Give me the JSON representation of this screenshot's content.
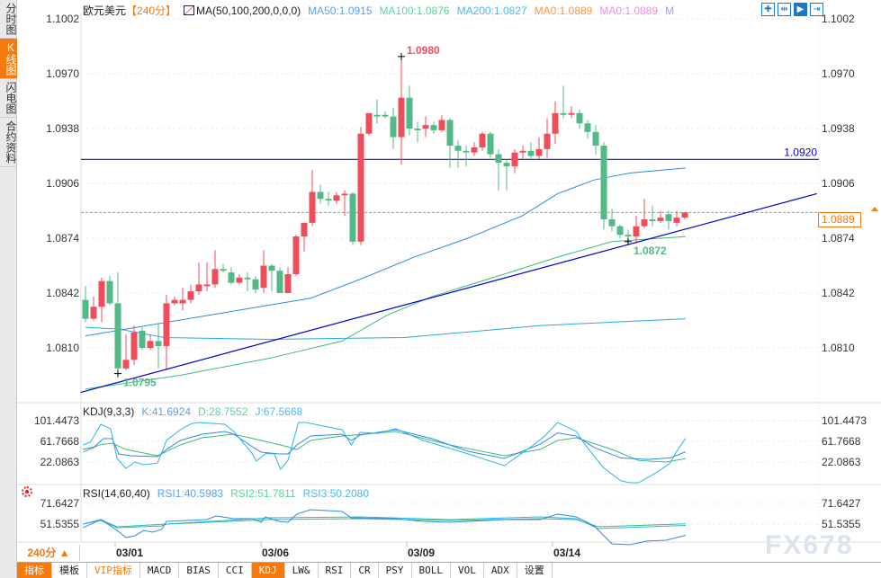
{
  "sidebar": {
    "tabs": [
      {
        "label": "分时图",
        "active": false
      },
      {
        "label": "K线图",
        "active": true
      },
      {
        "label": "闪电图",
        "active": false
      },
      {
        "label": "合约资料",
        "active": false
      }
    ]
  },
  "header": {
    "symbol": "欧元美元",
    "period": "【240分】",
    "ma_setting": "MA(50,100,200,0,0,0)",
    "ma50": "MA50:1.0915",
    "ma100": "MA100:1.0876",
    "ma200": "MA200:1.0827",
    "ma0a": "MA0:1.0889",
    "ma0b": "MA0:1.0889",
    "more": "M"
  },
  "tools": [
    {
      "icon": "crosshair-icon"
    },
    {
      "icon": "fit-range-icon"
    },
    {
      "icon": "play-icon"
    },
    {
      "icon": "exit-right-icon"
    }
  ],
  "colors": {
    "up": "#ee4d5a",
    "down": "#52b987",
    "ma50": "#2f8ae5",
    "ma100": "#3dbb78",
    "ma200": "#29a9e0",
    "trendline": "#0000cc",
    "hline": "#1a1a7a",
    "accent": "#f47a10",
    "k": "#2f8ae5",
    "d": "#3dbb78",
    "j": "#29b6e8"
  },
  "chart_data": {
    "type": "candlestick",
    "y_ticks": [
      "1.1002",
      "1.0970",
      "1.0938",
      "1.0906",
      "1.0874",
      "1.0842",
      "1.0810"
    ],
    "ylim": [
      1.0784,
      1.1002
    ],
    "x_ticks": [
      {
        "label": "03/01",
        "index": 4
      },
      {
        "label": "03/06",
        "index": 22
      },
      {
        "label": "03/09",
        "index": 40
      },
      {
        "label": "03/14",
        "index": 58
      }
    ],
    "ohlc": [
      [
        1.0838,
        1.0846,
        1.0825,
        1.0827
      ],
      [
        1.0827,
        1.084,
        1.0826,
        1.0834
      ],
      [
        1.0834,
        1.0851,
        1.0825,
        1.0849
      ],
      [
        1.0849,
        1.0852,
        1.0835,
        1.0836
      ],
      [
        1.0836,
        1.0854,
        1.0796,
        1.0798
      ],
      [
        1.0798,
        1.0818,
        1.0797,
        1.0803
      ],
      [
        1.0803,
        1.0823,
        1.08,
        1.0819
      ],
      [
        1.082,
        1.0822,
        1.0809,
        1.081
      ],
      [
        1.081,
        1.0818,
        1.0809,
        1.0814
      ],
      [
        1.0814,
        1.0824,
        1.0798,
        1.0811
      ],
      [
        1.0811,
        1.0841,
        1.0797,
        1.0836
      ],
      [
        1.0836,
        1.084,
        1.0835,
        1.0838
      ],
      [
        1.0836,
        1.0845,
        1.0832,
        1.0838
      ],
      [
        1.0838,
        1.0847,
        1.0836,
        1.0843
      ],
      [
        1.0843,
        1.086,
        1.0841,
        1.0847
      ],
      [
        1.0846,
        1.086,
        1.0843,
        1.0847
      ],
      [
        1.0847,
        1.0867,
        1.0845,
        1.0856
      ],
      [
        1.0856,
        1.0859,
        1.0854,
        1.0855
      ],
      [
        1.0854,
        1.0857,
        1.0847,
        1.0848
      ],
      [
        1.0848,
        1.0853,
        1.0847,
        1.0851
      ],
      [
        1.0851,
        1.0854,
        1.0843,
        1.085
      ],
      [
        1.085,
        1.0852,
        1.0842,
        1.0844
      ],
      [
        1.0845,
        1.0867,
        1.0842,
        1.0858
      ],
      [
        1.0858,
        1.0859,
        1.0843,
        1.0855
      ],
      [
        1.0855,
        1.0857,
        1.0842,
        1.0842
      ],
      [
        1.0842,
        1.0857,
        1.0842,
        1.0853
      ],
      [
        1.0853,
        1.0876,
        1.0852,
        1.0875
      ],
      [
        1.0875,
        1.0883,
        1.0866,
        1.0883
      ],
      [
        1.0883,
        1.0914,
        1.0881,
        1.0901
      ],
      [
        1.0901,
        1.0905,
        1.0894,
        1.0897
      ],
      [
        1.0897,
        1.0901,
        1.0893,
        1.0896
      ],
      [
        1.0896,
        1.0901,
        1.0894,
        1.0899
      ],
      [
        1.0899,
        1.0902,
        1.0887,
        1.09
      ],
      [
        1.09,
        1.0901,
        1.087,
        1.0872
      ],
      [
        1.0872,
        1.0939,
        1.087,
        1.0935
      ],
      [
        1.0935,
        1.0947,
        1.0934,
        1.0947
      ],
      [
        1.0946,
        1.0955,
        1.0941,
        1.0945
      ],
      [
        1.0946,
        1.0948,
        1.0944,
        1.0945
      ],
      [
        1.0945,
        1.095,
        1.0926,
        1.0933
      ],
      [
        1.0933,
        1.098,
        1.0917,
        1.0956
      ],
      [
        1.0956,
        1.0963,
        1.0934,
        1.0938
      ],
      [
        1.0938,
        1.0942,
        1.093,
        1.0937
      ],
      [
        1.0938,
        1.0945,
        1.0933,
        1.094
      ],
      [
        1.094,
        1.0942,
        1.0935,
        1.0937
      ],
      [
        1.0937,
        1.0946,
        1.0936,
        1.0943
      ],
      [
        1.0943,
        1.0944,
        1.0915,
        1.0928
      ],
      [
        1.0928,
        1.0931,
        1.0915,
        1.0925
      ],
      [
        1.0925,
        1.0928,
        1.0916,
        1.0924
      ],
      [
        1.0924,
        1.093,
        1.0922,
        1.0927
      ],
      [
        1.0927,
        1.0936,
        1.0925,
        1.0935
      ],
      [
        1.0935,
        1.0936,
        1.0921,
        1.0923
      ],
      [
        1.0923,
        1.0926,
        1.0902,
        1.0918
      ],
      [
        1.0918,
        1.092,
        1.0902,
        1.0916
      ],
      [
        1.0916,
        1.0926,
        1.0912,
        1.0924
      ],
      [
        1.0924,
        1.0928,
        1.092,
        1.0925
      ],
      [
        1.0925,
        1.093,
        1.092,
        1.0922
      ],
      [
        1.0922,
        1.0933,
        1.092,
        1.0926
      ],
      [
        1.0926,
        1.0944,
        1.0921,
        1.0935
      ],
      [
        1.0935,
        1.0954,
        1.0929,
        1.0947
      ],
      [
        1.0947,
        1.0963,
        1.0944,
        1.0946
      ],
      [
        1.0946,
        1.0951,
        1.0944,
        1.0947
      ],
      [
        1.0947,
        1.0949,
        1.0938,
        1.0941
      ],
      [
        1.0941,
        1.0943,
        1.0932,
        1.0936
      ],
      [
        1.0936,
        1.094,
        1.0923,
        1.0928
      ],
      [
        1.0928,
        1.093,
        1.0879,
        1.0885
      ],
      [
        1.0885,
        1.0891,
        1.0878,
        1.0881
      ],
      [
        1.0881,
        1.0882,
        1.0874,
        1.0876
      ],
      [
        1.0876,
        1.0879,
        1.0872,
        1.0875
      ],
      [
        1.0875,
        1.0887,
        1.0871,
        1.0881
      ],
      [
        1.0881,
        1.0897,
        1.088,
        1.0885
      ],
      [
        1.0885,
        1.0893,
        1.0881,
        1.0884
      ],
      [
        1.0884,
        1.089,
        1.0883,
        1.0886
      ],
      [
        1.0888,
        1.089,
        1.0879,
        1.0884
      ],
      [
        1.0883,
        1.089,
        1.0881,
        1.0886
      ],
      [
        1.0886,
        1.0889,
        1.0885,
        1.0889
      ]
    ],
    "ma50": [
      [
        0,
        1.0817
      ],
      [
        27.8,
        1.0839
      ],
      [
        33.9,
        1.085
      ],
      [
        40.6,
        1.0863
      ],
      [
        47.2,
        1.0874
      ],
      [
        53.9,
        1.0887
      ],
      [
        58.3,
        1.09
      ],
      [
        62.8,
        1.0908
      ],
      [
        67.2,
        1.0912
      ],
      [
        74.1,
        1.0915
      ]
    ],
    "ma100": [
      [
        0,
        1.0786
      ],
      [
        11.7,
        1.0794
      ],
      [
        22.8,
        1.0804
      ],
      [
        31.7,
        1.0814
      ],
      [
        37.2,
        1.0829
      ],
      [
        42.8,
        1.084
      ],
      [
        51.7,
        1.0853
      ],
      [
        58.3,
        1.0863
      ],
      [
        65,
        1.0872
      ],
      [
        74.1,
        1.0875
      ]
    ],
    "ma200": [
      [
        0,
        1.0822
      ],
      [
        4.1,
        1.0821
      ],
      [
        9.7,
        1.0816
      ],
      [
        22.8,
        1.0815
      ],
      [
        39.4,
        1.0816
      ],
      [
        56.1,
        1.0823
      ],
      [
        74.1,
        1.0827
      ]
    ],
    "trendline": [
      [
        -0.6,
        1.0784
      ],
      [
        90.3,
        1.09
      ]
    ],
    "hline": {
      "value": 1.092,
      "label": "1.0920"
    },
    "last_price": {
      "value": 1.0889,
      "label": "1.0889"
    },
    "annotations": [
      {
        "label": "1.0980",
        "index": 39,
        "value": 1.098
      },
      {
        "label": "1.0795",
        "index": 4,
        "value": 1.0795
      },
      {
        "label": "1.0872",
        "index": 67,
        "value": 1.0872
      }
    ]
  },
  "kdj": {
    "title": "KDJ(9,3,3)",
    "k_label": "K:41.6924",
    "d_label": "D:28.7552",
    "j_label": "J:67.5668",
    "y_ticks": [
      "101.4473",
      "61.7668",
      "22.0863"
    ],
    "K": [
      [
        -0.3,
        46.2
      ],
      [
        1.1,
        51.4
      ],
      [
        2.2,
        67
      ],
      [
        3.3,
        67
      ],
      [
        4.1,
        37.6
      ],
      [
        5.6,
        34.2
      ],
      [
        8.9,
        32.4
      ],
      [
        10,
        46.2
      ],
      [
        11.7,
        63.5
      ],
      [
        14.4,
        75.6
      ],
      [
        17.2,
        80.7
      ],
      [
        18.3,
        75.6
      ],
      [
        20.6,
        51.4
      ],
      [
        21.7,
        41.1
      ],
      [
        23.9,
        37.6
      ],
      [
        25,
        37.6
      ],
      [
        26.1,
        54.9
      ],
      [
        27.8,
        72.1
      ],
      [
        31.7,
        75.6
      ],
      [
        32.8,
        63.5
      ],
      [
        33.9,
        73.9
      ],
      [
        38.3,
        84.2
      ],
      [
        42.8,
        67
      ],
      [
        47.2,
        42.8
      ],
      [
        51.7,
        29
      ],
      [
        56.1,
        56
      ],
      [
        58.3,
        78
      ],
      [
        60.6,
        72
      ],
      [
        62.8,
        50
      ],
      [
        66.1,
        30
      ],
      [
        69.4,
        27
      ],
      [
        72.2,
        30
      ],
      [
        74.1,
        41.7
      ]
    ],
    "D": [
      [
        -0.3,
        41
      ],
      [
        1.7,
        54.9
      ],
      [
        3.3,
        58.3
      ],
      [
        5,
        46.2
      ],
      [
        8.9,
        34.2
      ],
      [
        11.7,
        54.9
      ],
      [
        14.4,
        68.7
      ],
      [
        18.3,
        75.6
      ],
      [
        21.7,
        63.5
      ],
      [
        25,
        51.4
      ],
      [
        26.1,
        46.2
      ],
      [
        27.8,
        63.5
      ],
      [
        31.7,
        72.1
      ],
      [
        38.3,
        80.7
      ],
      [
        45,
        54.9
      ],
      [
        51.7,
        34.2
      ],
      [
        56.1,
        46.2
      ],
      [
        58.3,
        63.5
      ],
      [
        60.6,
        68.7
      ],
      [
        65,
        46.2
      ],
      [
        68.3,
        25
      ],
      [
        71.7,
        22
      ],
      [
        74.1,
        28.8
      ]
    ],
    "J": [
      [
        -0.3,
        54.9
      ],
      [
        0.6,
        60
      ],
      [
        1.9,
        94.5
      ],
      [
        3.1,
        85.9
      ],
      [
        3.9,
        29
      ],
      [
        5,
        10
      ],
      [
        6.1,
        22
      ],
      [
        7.2,
        17
      ],
      [
        8.9,
        20
      ],
      [
        10,
        63.5
      ],
      [
        11.7,
        84
      ],
      [
        13.1,
        96
      ],
      [
        14.1,
        98
      ],
      [
        17.2,
        94.5
      ],
      [
        18.3,
        81
      ],
      [
        20.6,
        38
      ],
      [
        21.1,
        24
      ],
      [
        22.2,
        38
      ],
      [
        23.3,
        38
      ],
      [
        24.1,
        8
      ],
      [
        25,
        25.5
      ],
      [
        26.3,
        98
      ],
      [
        27.2,
        98
      ],
      [
        31.7,
        84
      ],
      [
        32.8,
        55
      ],
      [
        33.9,
        79
      ],
      [
        36.1,
        77
      ],
      [
        38.3,
        86
      ],
      [
        41.7,
        63.5
      ],
      [
        47.2,
        38
      ],
      [
        51.7,
        15
      ],
      [
        55,
        51
      ],
      [
        56.7,
        72
      ],
      [
        58.3,
        98
      ],
      [
        60.6,
        81
      ],
      [
        61.7,
        55
      ],
      [
        63.9,
        12
      ],
      [
        66.1,
        -14
      ],
      [
        67.2,
        -17.6
      ],
      [
        68.3,
        -17.6
      ],
      [
        70.6,
        3
      ],
      [
        72.2,
        20
      ],
      [
        72.8,
        38
      ],
      [
        74.1,
        67.6
      ]
    ]
  },
  "rsi": {
    "title": "RSI(14,60,40)",
    "rsi1_label": "RSI1:40.5983",
    "rsi2_label": "RSI2:51.7811",
    "rsi3_label": "RSI3:50.2080",
    "y_ticks": [
      "71.6427",
      "51.5355"
    ],
    "RSI1": [
      [
        -0.3,
        48
      ],
      [
        1.9,
        55.9
      ],
      [
        3.9,
        45.4
      ],
      [
        5,
        38.4
      ],
      [
        6.1,
        40.2
      ],
      [
        7.2,
        45.4
      ],
      [
        8.3,
        43.7
      ],
      [
        9.4,
        46.3
      ],
      [
        10,
        54.2
      ],
      [
        15,
        55.9
      ],
      [
        16.1,
        59.4
      ],
      [
        18.3,
        56.8
      ],
      [
        20.6,
        56.8
      ],
      [
        21.7,
        53.3
      ],
      [
        22.2,
        58.5
      ],
      [
        23.9,
        54.2
      ],
      [
        25,
        53.3
      ],
      [
        26.1,
        61.2
      ],
      [
        27.8,
        65.5
      ],
      [
        31.7,
        63.8
      ],
      [
        32.8,
        57.7
      ],
      [
        38.3,
        56.8
      ],
      [
        41.7,
        54.2
      ],
      [
        45,
        53.3
      ],
      [
        51.7,
        55.9
      ],
      [
        56.1,
        55.9
      ],
      [
        58.3,
        61.2
      ],
      [
        60.6,
        58.5
      ],
      [
        62.8,
        49.8
      ],
      [
        65,
        32.3
      ],
      [
        67.2,
        31.4
      ],
      [
        69.4,
        35
      ],
      [
        71.7,
        35.8
      ],
      [
        74.1,
        40.6
      ]
    ],
    "RSI2": [
      [
        -0.3,
        51.5
      ],
      [
        1.9,
        55
      ],
      [
        3.9,
        48
      ],
      [
        9.4,
        49.8
      ],
      [
        10,
        51.5
      ],
      [
        22.8,
        55.9
      ],
      [
        33.9,
        56.8
      ],
      [
        45,
        55
      ],
      [
        56.1,
        56.8
      ],
      [
        60.6,
        55.9
      ],
      [
        63.3,
        48.9
      ],
      [
        74.1,
        51.8
      ]
    ],
    "RSI3": [
      [
        -0.3,
        51.5
      ],
      [
        1.9,
        55.9
      ],
      [
        3.9,
        48.9
      ],
      [
        10,
        51.5
      ],
      [
        22.8,
        57.7
      ],
      [
        33.9,
        58.5
      ],
      [
        45,
        55.9
      ],
      [
        56.1,
        58.5
      ],
      [
        60.6,
        56.8
      ],
      [
        63.3,
        47.2
      ],
      [
        74.1,
        50.2
      ]
    ]
  },
  "footer": {
    "period": "240分 ▲",
    "tabs": [
      {
        "label": "指标",
        "style": "orange"
      },
      {
        "label": "模板",
        "style": ""
      },
      {
        "label": "VIP指标",
        "style": "vip"
      },
      {
        "label": "MACD",
        "style": ""
      },
      {
        "label": "BIAS",
        "style": ""
      },
      {
        "label": "CCI",
        "style": ""
      },
      {
        "label": "KDJ",
        "style": "orange"
      },
      {
        "label": "LW&",
        "style": ""
      },
      {
        "label": "RSI",
        "style": ""
      },
      {
        "label": "CR",
        "style": ""
      },
      {
        "label": "PSY",
        "style": ""
      },
      {
        "label": "BOLL",
        "style": ""
      },
      {
        "label": "VOL",
        "style": ""
      },
      {
        "label": "ADX",
        "style": ""
      },
      {
        "label": "设置",
        "style": ""
      }
    ]
  },
  "watermark": "FX678"
}
